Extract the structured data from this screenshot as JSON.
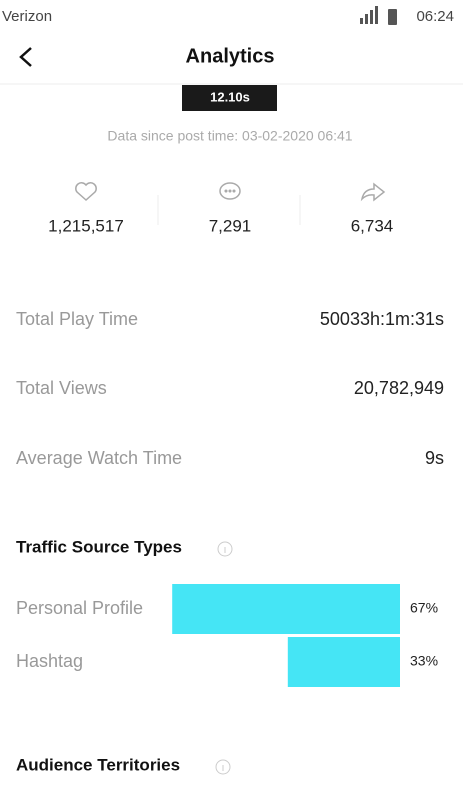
{
  "status_bar": {
    "carrier": "Verizon",
    "time": "06:24"
  },
  "header": {
    "title": "Analytics"
  },
  "video": {
    "duration": "12.10s"
  },
  "data_since": "Data since post time: 03-02-2020 06:41",
  "stats": [
    "1,215,517",
    "7,291",
    "6,734"
  ],
  "metrics": [
    {
      "label": "Total Play Time",
      "value": "50033h:1m:31s"
    },
    {
      "label": "Total Views",
      "value": "20,782,949"
    },
    {
      "label": "Average Watch Time",
      "value": "9s"
    }
  ],
  "chart_data": {
    "type": "bar",
    "title": "Traffic Source Types",
    "categories": [
      "Personal Profile",
      "Hashtag"
    ],
    "values": [
      67,
      33
    ],
    "value_labels": [
      "67%",
      "33%"
    ],
    "color": "#45e5f5"
  },
  "audience": {
    "title": "Audience Territories"
  }
}
